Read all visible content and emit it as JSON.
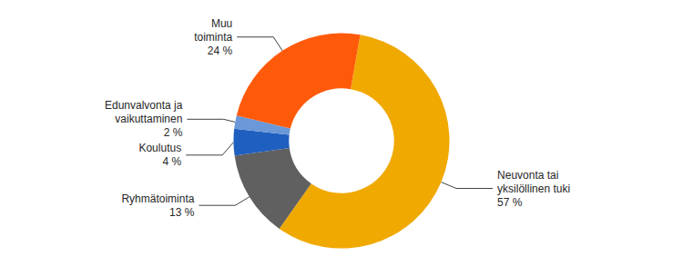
{
  "chart_data": {
    "type": "donut",
    "categories": [
      "Neuvonta tai\nyksilöllinen tuki",
      "Ryhmätoiminta",
      "Koulutus",
      "Edunvalvonta ja\nvaikuttaminen",
      "Muu\ntoiminta"
    ],
    "values": [
      57,
      13,
      4,
      2,
      24
    ],
    "value_labels": [
      "57 %",
      "13 %",
      "4 %",
      "2 %",
      "24 %"
    ],
    "colors": [
      "#f0a900",
      "#606060",
      "#1f5fbf",
      "#6a98d8",
      "#ff5a0a"
    ],
    "data_labels": true
  }
}
